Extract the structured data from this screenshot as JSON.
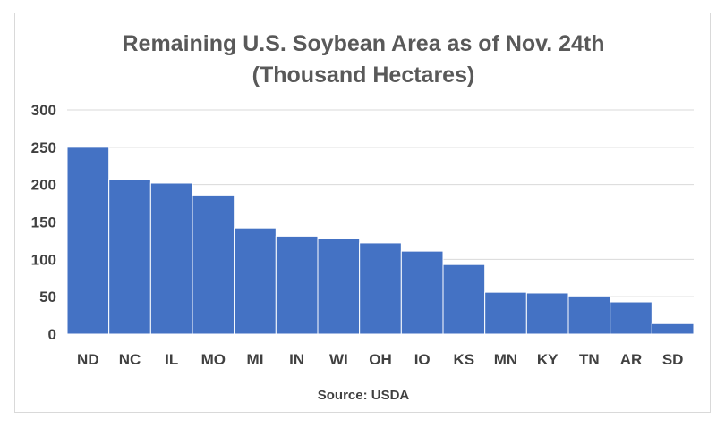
{
  "chart_data": {
    "type": "bar",
    "title": "Remaining U.S. Soybean Area as of Nov. 24th",
    "subtitle": "(Thousand Hectares)",
    "xlabel": "Source: USDA",
    "ylabel": "",
    "categories": [
      "ND",
      "NC",
      "IL",
      "MO",
      "MI",
      "IN",
      "WI",
      "OH",
      "IO",
      "KS",
      "MN",
      "KY",
      "TN",
      "AR",
      "SD"
    ],
    "values": [
      250,
      207,
      202,
      186,
      142,
      131,
      128,
      122,
      111,
      93,
      56,
      55,
      51,
      43,
      14
    ],
    "ylim": [
      0,
      300
    ],
    "yticks": [
      0,
      50,
      100,
      150,
      200,
      250,
      300
    ],
    "grid": true,
    "legend": "none",
    "colors": {
      "bar": "#4472C4",
      "grid": "#d9d9d9",
      "text": "#404040",
      "title": "#595959"
    }
  }
}
